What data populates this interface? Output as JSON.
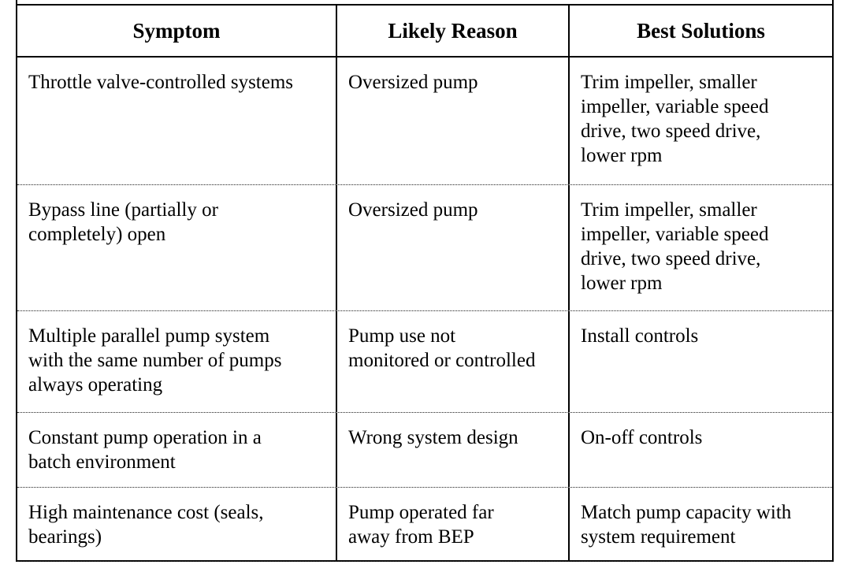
{
  "table": {
    "columns": [
      "Symptom",
      "Likely Reason",
      "Best Solutions"
    ],
    "rows": [
      {
        "symptom": "Throttle valve-controlled systems",
        "reason": "Oversized pump",
        "solutions": "Trim impeller, smaller\nimpeller, variable speed\ndrive, two speed drive,\nlower rpm"
      },
      {
        "symptom": "Bypass line (partially or\ncompletely) open",
        "reason": "Oversized pump",
        "solutions": "Trim impeller, smaller\nimpeller, variable speed\ndrive, two speed drive,\nlower rpm"
      },
      {
        "symptom": "Multiple parallel pump system\nwith the same number of pumps\nalways operating",
        "reason": "Pump use not\nmonitored or controlled",
        "solutions": "Install controls"
      },
      {
        "symptom": "Constant pump operation in a\nbatch environment",
        "reason": "Wrong system design",
        "solutions": "On-off controls"
      },
      {
        "symptom": "High maintenance cost (seals,\nbearings)",
        "reason": "Pump operated far\naway from BEP",
        "solutions": "Match pump capacity with\nsystem requirement"
      }
    ]
  },
  "colors": {
    "border": "#000000",
    "text": "#000000",
    "background": "#ffffff"
  }
}
